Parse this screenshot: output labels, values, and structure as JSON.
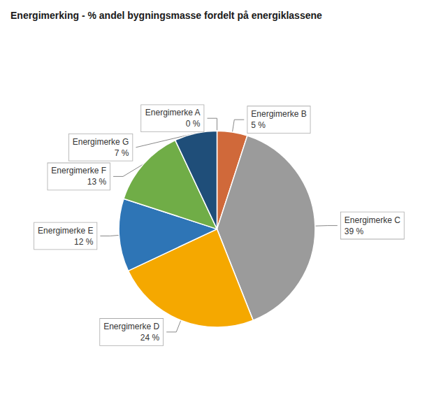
{
  "chart_data": {
    "type": "pie",
    "title": "Energimerking - % andel bygningsmasse fordelt på energiklassene",
    "categories": [
      "Energimerke A",
      "Energimerke B",
      "Energimerke C",
      "Energimerke D",
      "Energimerke E",
      "Energimerke F",
      "Energimerke G"
    ],
    "values": [
      0,
      5,
      39,
      24,
      12,
      13,
      7
    ],
    "value_labels": [
      "0 %",
      "5 %",
      "39 %",
      "24 %",
      "12 %",
      "13 %",
      "7 %"
    ],
    "colors": [
      "#ffffff",
      "#d0693a",
      "#9b9b9b",
      "#f5a800",
      "#2e75b6",
      "#70ad47",
      "#1f4e79"
    ],
    "data_labels": true
  }
}
